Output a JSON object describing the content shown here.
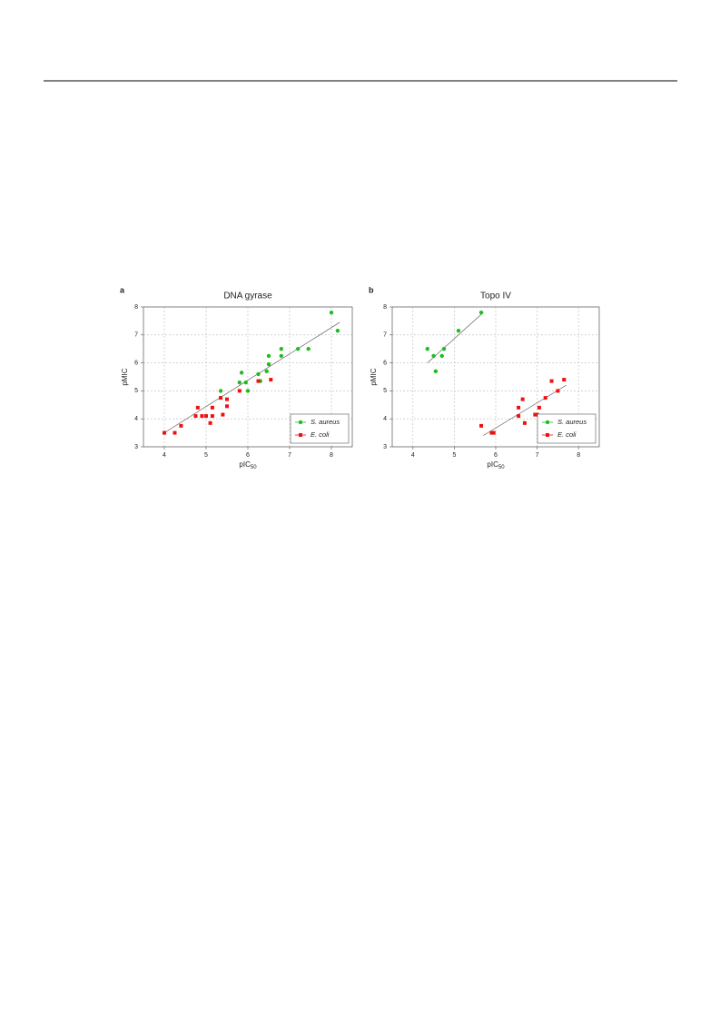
{
  "chart_data": [
    {
      "type": "scatter",
      "panel_label": "a",
      "title": "DNA gyrase",
      "xlabel": "pIC",
      "xlabel_subscript": "50",
      "ylabel": "pMIC",
      "xlim": [
        3.5,
        8.5
      ],
      "ylim": [
        3,
        8
      ],
      "xticks": [
        4,
        5,
        6,
        7,
        8
      ],
      "yticks": [
        3,
        4,
        5,
        6,
        7,
        8
      ],
      "grid": true,
      "legend": "lower right",
      "series": [
        {
          "name": "S. aureus",
          "color": "#22bb22",
          "marker": "circle",
          "x": [
            5.35,
            5.8,
            5.85,
            5.95,
            6.0,
            6.25,
            6.3,
            6.45,
            6.5,
            6.5,
            6.8,
            6.8,
            7.2,
            7.45,
            8.0,
            8.15
          ],
          "values": [
            5.0,
            5.3,
            5.65,
            5.3,
            5.0,
            5.6,
            5.35,
            5.7,
            5.95,
            6.25,
            6.25,
            6.5,
            6.5,
            6.5,
            7.8,
            7.15
          ]
        },
        {
          "name": "E. coli",
          "color": "#ee1111",
          "marker": "square",
          "x": [
            4.0,
            4.25,
            4.4,
            4.75,
            4.8,
            4.9,
            5.0,
            5.1,
            5.15,
            5.15,
            5.35,
            5.4,
            5.5,
            5.5,
            5.8,
            6.25,
            6.55
          ],
          "values": [
            3.5,
            3.5,
            3.75,
            4.1,
            4.4,
            4.1,
            4.1,
            3.85,
            4.4,
            4.1,
            4.75,
            4.15,
            4.45,
            4.7,
            5.0,
            5.35,
            5.4
          ]
        }
      ],
      "trendlines": [
        {
          "x": [
            4.0,
            8.2
          ],
          "values": [
            3.5,
            7.45
          ]
        }
      ]
    },
    {
      "type": "scatter",
      "panel_label": "b",
      "title": "Topo IV",
      "xlabel": "pIC",
      "xlabel_subscript": "50",
      "ylabel": "pMIC",
      "xlim": [
        3.5,
        8.5
      ],
      "ylim": [
        3,
        8
      ],
      "xticks": [
        4,
        5,
        6,
        7,
        8
      ],
      "yticks": [
        3,
        4,
        5,
        6,
        7,
        8
      ],
      "grid": true,
      "legend": "lower right",
      "series": [
        {
          "name": "S. aureus",
          "color": "#22bb22",
          "marker": "circle",
          "x": [
            4.35,
            4.5,
            4.55,
            4.7,
            4.75,
            5.1,
            5.65
          ],
          "values": [
            6.5,
            6.25,
            5.7,
            6.25,
            6.5,
            7.15,
            7.8
          ]
        },
        {
          "name": "E. coli",
          "color": "#ee1111",
          "marker": "square",
          "x": [
            5.65,
            5.9,
            5.95,
            6.55,
            6.55,
            6.65,
            6.7,
            6.95,
            7.0,
            7.05,
            7.2,
            7.35,
            7.5,
            7.65
          ],
          "values": [
            3.75,
            3.5,
            3.5,
            4.1,
            4.4,
            4.7,
            3.85,
            4.15,
            4.15,
            4.4,
            4.75,
            5.35,
            5.0,
            5.4
          ]
        }
      ],
      "trendlines": [
        {
          "x": [
            4.35,
            5.7
          ],
          "values": [
            6.0,
            7.8
          ]
        },
        {
          "x": [
            5.7,
            7.7
          ],
          "values": [
            3.4,
            5.2
          ]
        }
      ]
    }
  ]
}
